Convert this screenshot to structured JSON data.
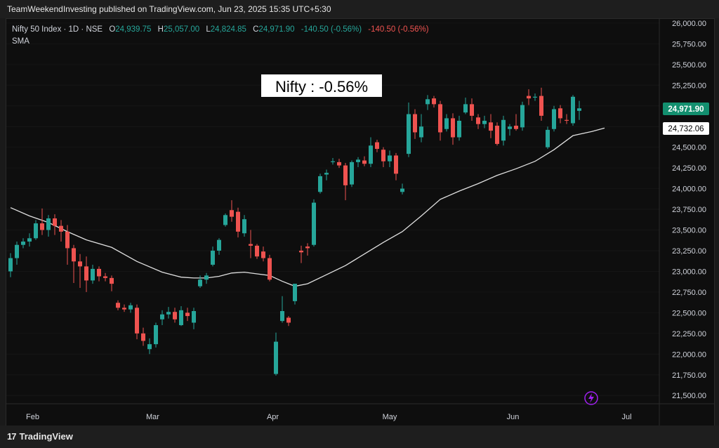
{
  "header": {
    "publish_line": "TeamWeekendInvesting published on TradingView.com, Jun 23, 2025 15:35 UTC+5:30"
  },
  "legend": {
    "symbol": "Nifty 50 Index · 1D · NSE",
    "o_label": "O",
    "o_value": "24,939.75",
    "h_label": "H",
    "h_value": "25,057.00",
    "l_label": "L",
    "l_value": "24,824.85",
    "c_label": "C",
    "c_value": "24,971.90",
    "change": "-140.50 (-0.56%)",
    "change2": "-140.50 (-0.56%)",
    "indicator": "SMA"
  },
  "annotation": "Nifty : -0.56%",
  "footer": {
    "brand": "TradingView",
    "logo_mark": "17"
  },
  "lightning_icon": "lightning-icon",
  "colors": {
    "up": "#26a69a",
    "down": "#ef5350",
    "sma": "#e0e0e0",
    "last_price_bg": "#138f6f"
  },
  "chart_data": {
    "type": "candlestick",
    "title": "Nifty 50 Index · 1D · NSE",
    "y_range": [
      21400,
      26050
    ],
    "y_ticks": [
      21500,
      21750,
      22000,
      22250,
      22500,
      22750,
      23000,
      23250,
      23500,
      23750,
      24000,
      24250,
      24500,
      24750,
      25000,
      25250,
      25500,
      25750,
      26000
    ],
    "y_tick_labels": [
      "21,500.00",
      "21,750.00",
      "22,000.00",
      "22,250.00",
      "22,500.00",
      "22,750.00",
      "23,000.00",
      "23,250.00",
      "23,500.00",
      "23,750.00",
      "24,000.00",
      "24,250.00",
      "24,500.00",
      "24,750.00",
      "25,000.00",
      "25,250.00",
      "25,500.00",
      "25,750.00",
      "26,000.00"
    ],
    "x_labels": [
      "Feb",
      "Mar",
      "Apr",
      "May",
      "Jun",
      "Jul"
    ],
    "x_label_positions": [
      3.5,
      22.5,
      41.5,
      60,
      79.5,
      97.5
    ],
    "last_price_label": "24,971.90",
    "sma_label": "24,732.06",
    "candles": [
      [
        23000,
        23220,
        22930,
        23160
      ],
      [
        23160,
        23360,
        23080,
        23320
      ],
      [
        23320,
        23400,
        23280,
        23360
      ],
      [
        23360,
        23460,
        23300,
        23400
      ],
      [
        23400,
        23620,
        23380,
        23580
      ],
      [
        23580,
        23760,
        23440,
        23500
      ],
      [
        23500,
        23680,
        23420,
        23640
      ],
      [
        23640,
        23690,
        23440,
        23550
      ],
      [
        23550,
        23620,
        23360,
        23480
      ],
      [
        23480,
        23560,
        23080,
        23280
      ],
      [
        23280,
        23320,
        22860,
        23120
      ],
      [
        23120,
        23210,
        22800,
        23060
      ],
      [
        23060,
        23180,
        22750,
        22890
      ],
      [
        22890,
        23080,
        22850,
        23030
      ],
      [
        23030,
        23060,
        22880,
        22940
      ],
      [
        22940,
        22980,
        22880,
        22920
      ],
      [
        22920,
        22950,
        22760,
        22850
      ],
      [
        22620,
        22650,
        22530,
        22560
      ],
      [
        22560,
        22600,
        22510,
        22540
      ],
      [
        22540,
        22620,
        22500,
        22590
      ],
      [
        22560,
        22600,
        22180,
        22250
      ],
      [
        22250,
        22320,
        22100,
        22160
      ],
      [
        22060,
        22190,
        22000,
        22120
      ],
      [
        22120,
        22380,
        22080,
        22350
      ],
      [
        22420,
        22530,
        22350,
        22480
      ],
      [
        22480,
        22570,
        22430,
        22510
      ],
      [
        22510,
        22560,
        22380,
        22420
      ],
      [
        22350,
        22580,
        22340,
        22530
      ],
      [
        22500,
        22560,
        22400,
        22460
      ],
      [
        22380,
        22560,
        22300,
        22520
      ],
      [
        22820,
        22950,
        22800,
        22900
      ],
      [
        22900,
        22980,
        22850,
        22950
      ],
      [
        23080,
        23300,
        23060,
        23250
      ],
      [
        23250,
        23400,
        23200,
        23380
      ],
      [
        23560,
        23700,
        23540,
        23680
      ],
      [
        23740,
        23860,
        23600,
        23660
      ],
      [
        23720,
        23770,
        23410,
        23480
      ],
      [
        23460,
        23680,
        23420,
        23630
      ],
      [
        23330,
        23500,
        23160,
        23310
      ],
      [
        23310,
        23330,
        23150,
        23180
      ],
      [
        23240,
        23300,
        23120,
        23160
      ],
      [
        23160,
        23200,
        22880,
        22900
      ],
      [
        21760,
        22260,
        21740,
        22150
      ],
      [
        22400,
        22700,
        22380,
        22520
      ],
      [
        22440,
        22460,
        22340,
        22380
      ],
      [
        22640,
        22850,
        22600,
        22850
      ],
      [
        23250,
        23310,
        23100,
        23230
      ],
      [
        23300,
        23340,
        23190,
        23280
      ],
      [
        23320,
        23870,
        23300,
        23830
      ],
      [
        23960,
        24180,
        23940,
        24150
      ],
      [
        24170,
        24230,
        24100,
        24190
      ],
      [
        24320,
        24370,
        24290,
        24330
      ],
      [
        24320,
        24360,
        24250,
        24280
      ],
      [
        24280,
        24310,
        23860,
        24040
      ],
      [
        24050,
        24340,
        24020,
        24320
      ],
      [
        24320,
        24380,
        24260,
        24350
      ],
      [
        24340,
        24390,
        24270,
        24300
      ],
      [
        24300,
        24620,
        24260,
        24520
      ],
      [
        24560,
        24590,
        24440,
        24480
      ],
      [
        24470,
        24500,
        24260,
        24330
      ],
      [
        24330,
        24460,
        24260,
        24400
      ],
      [
        24400,
        24430,
        24100,
        24180
      ],
      [
        23960,
        24060,
        23930,
        24000
      ],
      [
        24420,
        25040,
        24380,
        24900
      ],
      [
        24900,
        24960,
        24600,
        24680
      ],
      [
        24620,
        24900,
        24560,
        24750
      ],
      [
        25020,
        25130,
        24950,
        25080
      ],
      [
        25090,
        25120,
        24980,
        25020
      ],
      [
        25020,
        25060,
        24580,
        24680
      ],
      [
        24720,
        24900,
        24690,
        24850
      ],
      [
        24850,
        24910,
        24530,
        24620
      ],
      [
        24620,
        24880,
        24580,
        24820
      ],
      [
        24920,
        25100,
        24900,
        25020
      ],
      [
        25020,
        25090,
        24820,
        24880
      ],
      [
        24860,
        24900,
        24720,
        24780
      ],
      [
        24780,
        24880,
        24730,
        24820
      ],
      [
        24800,
        24900,
        24610,
        24700
      ],
      [
        24760,
        24800,
        24520,
        24540
      ],
      [
        24580,
        24880,
        24520,
        24830
      ],
      [
        24720,
        24780,
        24640,
        24750
      ],
      [
        24760,
        24900,
        24700,
        24720
      ],
      [
        24740,
        25050,
        24700,
        25010
      ],
      [
        25120,
        25200,
        25010,
        25090
      ],
      [
        25100,
        25150,
        25060,
        25110
      ],
      [
        25120,
        25220,
        24820,
        24880
      ],
      [
        24500,
        24750,
        24480,
        24710
      ],
      [
        24720,
        25000,
        24690,
        24960
      ],
      [
        24970,
        25010,
        24790,
        24850
      ],
      [
        24830,
        24900,
        24780,
        24820
      ],
      [
        24790,
        25130,
        24760,
        25110
      ],
      [
        24940,
        25060,
        24830,
        24970
      ]
    ],
    "sma": [
      [
        0,
        23770
      ],
      [
        3,
        23670
      ],
      [
        6,
        23590
      ],
      [
        9,
        23480
      ],
      [
        12,
        23380
      ],
      [
        16,
        23290
      ],
      [
        20,
        23120
      ],
      [
        24,
        22990
      ],
      [
        27,
        22930
      ],
      [
        29,
        22920
      ],
      [
        31,
        22920
      ],
      [
        33,
        22940
      ],
      [
        35,
        22980
      ],
      [
        37,
        22990
      ],
      [
        39,
        22970
      ],
      [
        41,
        22950
      ],
      [
        43,
        22880
      ],
      [
        45,
        22820
      ],
      [
        47,
        22850
      ],
      [
        50,
        22960
      ],
      [
        53,
        23070
      ],
      [
        56,
        23210
      ],
      [
        59,
        23350
      ],
      [
        62,
        23480
      ],
      [
        65,
        23670
      ],
      [
        68,
        23870
      ],
      [
        71,
        23970
      ],
      [
        74,
        24060
      ],
      [
        77,
        24160
      ],
      [
        80,
        24240
      ],
      [
        83,
        24330
      ],
      [
        86,
        24470
      ],
      [
        89,
        24640
      ],
      [
        92,
        24690
      ],
      [
        94,
        24732
      ]
    ]
  }
}
